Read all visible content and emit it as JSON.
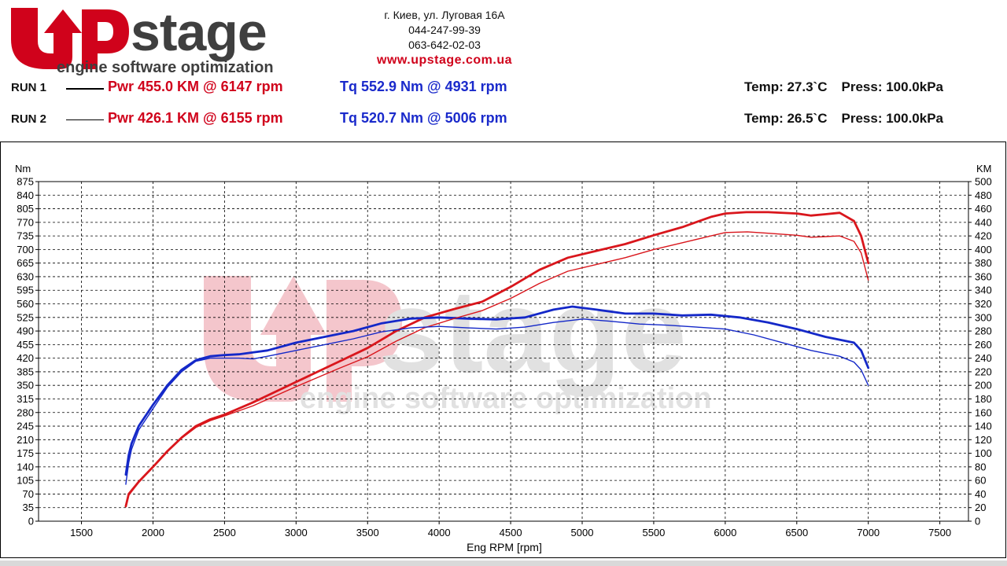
{
  "brand": {
    "logo_text": "UPstage",
    "tagline": "engine software optimization",
    "primary_color": "#d0021b",
    "secondary_color": "#3f3f3f"
  },
  "contact": {
    "address": "г. Киев, ул. Луговая 16А",
    "phone1": "044-247-99-39",
    "phone2": "063-642-02-03",
    "website": "www.upstage.com.ua"
  },
  "runs": [
    {
      "label": "RUN 1",
      "power": "Pwr  455.0 KM @ 6147 rpm",
      "torque": "Tq 552.9 Nm @ 4931 rpm",
      "temp": "Temp: 27.3`C",
      "press": "Press: 100.0kPa"
    },
    {
      "label": "RUN 2",
      "power": "Pwr  426.1 KM @ 6155 rpm",
      "torque": "Tq 520.7 Nm @ 5006 rpm",
      "temp": "Temp: 26.5`C",
      "press": "Press: 100.0kPa"
    }
  ],
  "chart_data": {
    "type": "line",
    "xlabel": "Eng RPM [rpm]",
    "ylabel_left": "Nm",
    "ylabel_right": "KM",
    "xlim": [
      1200,
      7700
    ],
    "xticks": [
      1500,
      2000,
      2500,
      3000,
      3500,
      4000,
      4500,
      5000,
      5500,
      6000,
      6500,
      7000,
      7500
    ],
    "ylim_left": [
      0,
      875
    ],
    "yticks_left_step": 35,
    "ylim_right": [
      0,
      500
    ],
    "yticks_right_step": 20,
    "grid": true,
    "colors": {
      "power": "#d9161c",
      "torque": "#1428c8"
    },
    "series": [
      {
        "run": "RUN 1",
        "quantity": "power",
        "axis": "right",
        "x": [
          1810,
          1830,
          1900,
          2000,
          2100,
          2200,
          2300,
          2400,
          2500,
          2700,
          3000,
          3300,
          3500,
          3700,
          3900,
          4100,
          4300,
          4500,
          4700,
          4900,
          5100,
          5300,
          5500,
          5700,
          5900,
          6000,
          6147,
          6300,
          6500,
          6600,
          6700,
          6800,
          6900,
          6950,
          7000
        ],
        "values": [
          22,
          40,
          58,
          80,
          103,
          123,
          140,
          150,
          157,
          175,
          205,
          235,
          255,
          280,
          300,
          312,
          323,
          345,
          370,
          388,
          398,
          408,
          421,
          433,
          448,
          453,
          455,
          455,
          453,
          450,
          452,
          454,
          442,
          420,
          380
        ]
      },
      {
        "run": "RUN 1",
        "quantity": "torque",
        "axis": "left",
        "x": [
          1810,
          1830,
          1850,
          1900,
          2000,
          2100,
          2200,
          2300,
          2400,
          2500,
          2600,
          2700,
          2800,
          3000,
          3200,
          3400,
          3600,
          3800,
          4000,
          4200,
          4400,
          4600,
          4800,
          4931,
          5100,
          5300,
          5500,
          5700,
          5900,
          6100,
          6300,
          6500,
          6700,
          6900,
          6950,
          7000
        ],
        "values": [
          120,
          170,
          200,
          245,
          300,
          350,
          390,
          415,
          425,
          428,
          430,
          435,
          440,
          460,
          475,
          490,
          510,
          522,
          525,
          522,
          520,
          525,
          545,
          553,
          545,
          535,
          535,
          530,
          532,
          525,
          512,
          495,
          475,
          460,
          440,
          395
        ]
      },
      {
        "run": "RUN 2",
        "quantity": "power",
        "axis": "right",
        "x": [
          1810,
          1830,
          1900,
          2000,
          2100,
          2200,
          2300,
          2400,
          2500,
          2700,
          3000,
          3300,
          3500,
          3700,
          3900,
          4100,
          4300,
          4500,
          4700,
          4900,
          5100,
          5300,
          5500,
          5700,
          5900,
          6000,
          6155,
          6300,
          6500,
          6600,
          6700,
          6800,
          6900,
          6950,
          7000
        ],
        "values": [
          22,
          38,
          57,
          80,
          102,
          122,
          138,
          148,
          155,
          170,
          198,
          225,
          242,
          265,
          285,
          298,
          310,
          328,
          350,
          368,
          378,
          388,
          400,
          410,
          420,
          425,
          426,
          424,
          421,
          418,
          419,
          420,
          412,
          395,
          355
        ]
      },
      {
        "run": "RUN 2",
        "quantity": "torque",
        "axis": "left",
        "x": [
          1810,
          1830,
          1850,
          1900,
          2000,
          2100,
          2200,
          2300,
          2400,
          2500,
          2600,
          2700,
          2800,
          3000,
          3200,
          3400,
          3600,
          3800,
          4000,
          4200,
          4400,
          4600,
          4800,
          5006,
          5200,
          5400,
          5600,
          5800,
          6000,
          6200,
          6400,
          6600,
          6800,
          6900,
          6950,
          7000
        ],
        "values": [
          95,
          150,
          185,
          235,
          290,
          345,
          385,
          412,
          420,
          420,
          420,
          418,
          425,
          440,
          455,
          470,
          488,
          498,
          502,
          498,
          495,
          500,
          512,
          521,
          515,
          508,
          505,
          500,
          495,
          480,
          460,
          440,
          425,
          410,
          390,
          350
        ]
      }
    ]
  }
}
